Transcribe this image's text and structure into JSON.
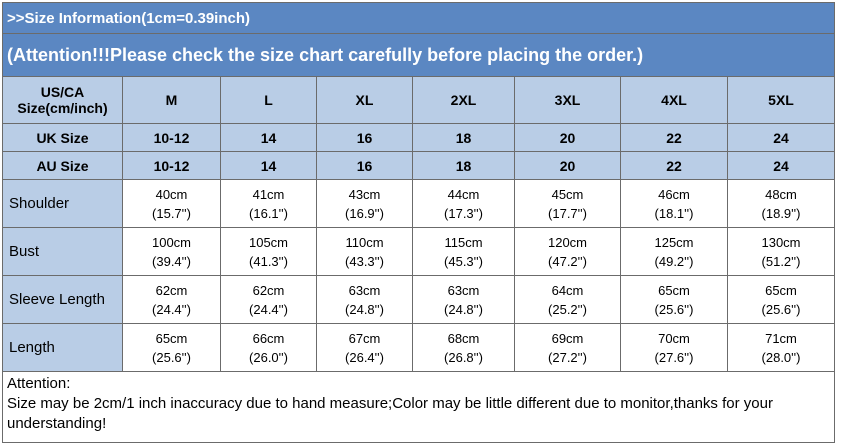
{
  "header": {
    "title": ">>Size Information(1cm=0.39inch)",
    "attention": "(Attention!!!Please check the size chart carefully before placing the order.)"
  },
  "table": {
    "columns": [
      "US/CA Size(cm/inch)",
      "M",
      "L",
      "XL",
      "2XL",
      "3XL",
      "4XL",
      "5XL"
    ],
    "size_rows": [
      {
        "label": "UK Size",
        "cells": [
          "10-12",
          "14",
          "16",
          "18",
          "20",
          "22",
          "24"
        ]
      },
      {
        "label": "AU Size",
        "cells": [
          "10-12",
          "14",
          "16",
          "18",
          "20",
          "22",
          "24"
        ]
      }
    ],
    "measurements": [
      {
        "label": "Shoulder",
        "cells": [
          [
            "40cm",
            "(15.7'')"
          ],
          [
            "41cm",
            "(16.1'')"
          ],
          [
            "43cm",
            "(16.9'')"
          ],
          [
            "44cm",
            "(17.3'')"
          ],
          [
            "45cm",
            "(17.7'')"
          ],
          [
            "46cm",
            "(18.1'')"
          ],
          [
            "48cm",
            "(18.9'')"
          ]
        ]
      },
      {
        "label": "Bust",
        "cells": [
          [
            "100cm",
            "(39.4'')"
          ],
          [
            "105cm",
            "(41.3'')"
          ],
          [
            "110cm",
            "(43.3'')"
          ],
          [
            "115cm",
            "(45.3'')"
          ],
          [
            "120cm",
            "(47.2'')"
          ],
          [
            "125cm",
            "(49.2'')"
          ],
          [
            "130cm",
            "(51.2'')"
          ]
        ]
      },
      {
        "label": "Sleeve Length",
        "cells": [
          [
            "62cm",
            "(24.4'')"
          ],
          [
            "62cm",
            "(24.4'')"
          ],
          [
            "63cm",
            "(24.8'')"
          ],
          [
            "63cm",
            "(24.8'')"
          ],
          [
            "64cm",
            "(25.2'')"
          ],
          [
            "65cm",
            "(25.6'')"
          ],
          [
            "65cm",
            "(25.6'')"
          ]
        ]
      },
      {
        "label": "Length",
        "cells": [
          [
            "65cm",
            "(25.6'')"
          ],
          [
            "66cm",
            "(26.0'')"
          ],
          [
            "67cm",
            "(26.4'')"
          ],
          [
            "68cm",
            "(26.8'')"
          ],
          [
            "69cm",
            "(27.2'')"
          ],
          [
            "70cm",
            "(27.6'')"
          ],
          [
            "71cm",
            "(28.0'')"
          ]
        ]
      }
    ]
  },
  "footer": {
    "heading": "Attention:",
    "text": "Size may be 2cm/1 inch inaccuracy due to hand measure;Color may be little different due to monitor,thanks for your understanding!"
  }
}
